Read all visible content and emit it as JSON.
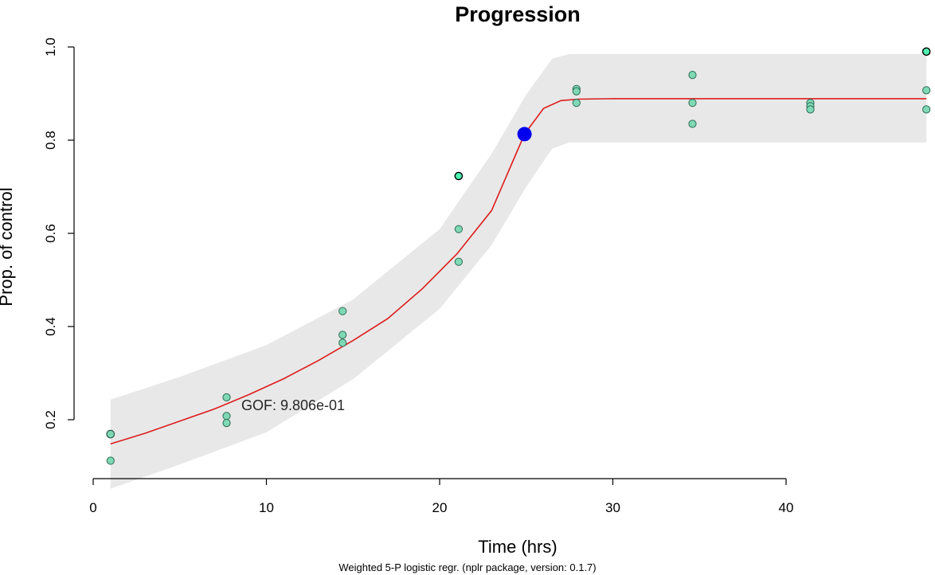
{
  "chart_data": {
    "type": "scatter",
    "title": "Progression",
    "xlabel": "Time (hrs)",
    "ylabel": "Prop. of control",
    "subtitle": "Weighted 5-P logistic regr. (nplr package, version: 0.1.7)",
    "annotation": "GOF: 9.806e-01",
    "xlim": [
      0,
      48
    ],
    "ylim": [
      0.08,
      1.0
    ],
    "x_ticks": [
      0,
      10,
      20,
      30,
      40
    ],
    "x_tick_labels": [
      "0",
      "10",
      "20",
      "30",
      "40"
    ],
    "y_ticks": [
      0.2,
      0.4,
      0.6,
      0.8,
      1.0
    ],
    "y_tick_labels": [
      "0.2",
      "0.4",
      "0.6",
      "0.8",
      "1.0"
    ],
    "grid": false,
    "colors": {
      "points_fill": "#7ed9b5",
      "points_edge": "#2f6b56",
      "outlier_fill": "#4cf0b0",
      "outlier_edge": "#000000",
      "fit_line": "#dd1c1c",
      "band": "#e8e8e8",
      "highlight": "#0000ee"
    },
    "points": [
      {
        "x": 1.0,
        "y": 0.169,
        "outlier": true
      },
      {
        "x": 1.0,
        "y": 0.169
      },
      {
        "x": 1.0,
        "y": 0.112
      },
      {
        "x": 7.7,
        "y": 0.248
      },
      {
        "x": 7.7,
        "y": 0.208
      },
      {
        "x": 7.7,
        "y": 0.193
      },
      {
        "x": 14.4,
        "y": 0.433
      },
      {
        "x": 14.4,
        "y": 0.382
      },
      {
        "x": 14.4,
        "y": 0.365
      },
      {
        "x": 21.1,
        "y": 0.723,
        "outlier": true
      },
      {
        "x": 21.1,
        "y": 0.609
      },
      {
        "x": 21.1,
        "y": 0.539
      },
      {
        "x": 27.9,
        "y": 0.91
      },
      {
        "x": 27.9,
        "y": 0.905
      },
      {
        "x": 27.9,
        "y": 0.88
      },
      {
        "x": 34.6,
        "y": 0.94
      },
      {
        "x": 34.6,
        "y": 0.88
      },
      {
        "x": 34.6,
        "y": 0.835
      },
      {
        "x": 41.4,
        "y": 0.88
      },
      {
        "x": 41.4,
        "y": 0.873
      },
      {
        "x": 41.4,
        "y": 0.866
      },
      {
        "x": 48.1,
        "y": 0.99,
        "outlier": true
      },
      {
        "x": 48.1,
        "y": 0.907
      },
      {
        "x": 48.1,
        "y": 0.866
      }
    ],
    "highlight_point": {
      "x": 24.9,
      "y": 0.813
    },
    "fit_curve": [
      {
        "x": 1,
        "y": 0.148
      },
      {
        "x": 3,
        "y": 0.171
      },
      {
        "x": 5,
        "y": 0.197
      },
      {
        "x": 7,
        "y": 0.223
      },
      {
        "x": 9,
        "y": 0.254
      },
      {
        "x": 11,
        "y": 0.288
      },
      {
        "x": 13,
        "y": 0.327
      },
      {
        "x": 15,
        "y": 0.37
      },
      {
        "x": 17,
        "y": 0.417
      },
      {
        "x": 19,
        "y": 0.481
      },
      {
        "x": 21,
        "y": 0.556
      },
      {
        "x": 23,
        "y": 0.649
      },
      {
        "x": 24.9,
        "y": 0.813
      },
      {
        "x": 26,
        "y": 0.868
      },
      {
        "x": 27,
        "y": 0.885
      },
      {
        "x": 28,
        "y": 0.888
      },
      {
        "x": 30,
        "y": 0.889
      },
      {
        "x": 35,
        "y": 0.889
      },
      {
        "x": 40,
        "y": 0.889
      },
      {
        "x": 45,
        "y": 0.889
      },
      {
        "x": 48.1,
        "y": 0.889
      }
    ],
    "band_upper": [
      {
        "x": 1,
        "y": 0.243
      },
      {
        "x": 5,
        "y": 0.292
      },
      {
        "x": 10,
        "y": 0.36
      },
      {
        "x": 15,
        "y": 0.458
      },
      {
        "x": 20,
        "y": 0.609
      },
      {
        "x": 23,
        "y": 0.771
      },
      {
        "x": 25,
        "y": 0.898
      },
      {
        "x": 26.5,
        "y": 0.975
      },
      {
        "x": 27.5,
        "y": 0.985
      },
      {
        "x": 35,
        "y": 0.985
      },
      {
        "x": 48.1,
        "y": 0.985
      }
    ],
    "band_lower": [
      {
        "x": 1,
        "y": 0.052
      },
      {
        "x": 5,
        "y": 0.104
      },
      {
        "x": 10,
        "y": 0.173
      },
      {
        "x": 15,
        "y": 0.287
      },
      {
        "x": 20,
        "y": 0.438
      },
      {
        "x": 23,
        "y": 0.575
      },
      {
        "x": 25,
        "y": 0.7
      },
      {
        "x": 26.5,
        "y": 0.782
      },
      {
        "x": 27.5,
        "y": 0.795
      },
      {
        "x": 35,
        "y": 0.795
      },
      {
        "x": 48.1,
        "y": 0.795
      }
    ]
  }
}
